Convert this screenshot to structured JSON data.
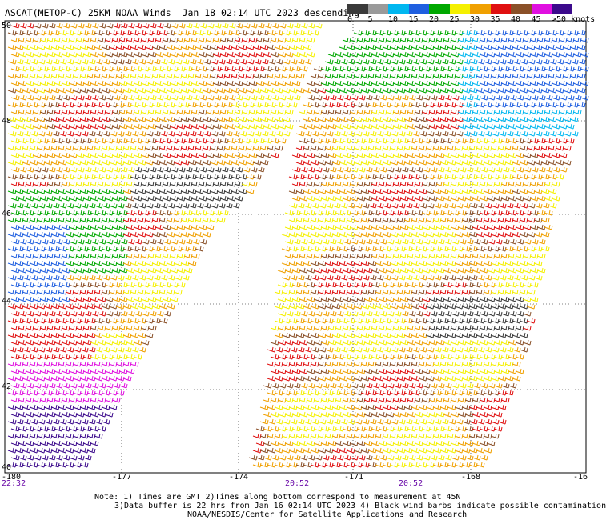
{
  "title": "ASCAT(METOP-C) 25KM NOAA Winds  Jan 18 02:14 UTC 2023 descending",
  "legend": {
    "labels": [
      "0",
      "5",
      "10",
      "15",
      "20",
      "25",
      "30",
      "35",
      "40",
      "45",
      ">50 knots"
    ],
    "colors": [
      "#3a3a3a",
      "#9a9a9a",
      "#00b7f0",
      "#1f5fe0",
      "#00a800",
      "#f5f000",
      "#f0a000",
      "#e01010",
      "#8a5028",
      "#e010e0",
      "#3c0a8c"
    ]
  },
  "axes": {
    "lon_labels": [
      "-180",
      "-177",
      "-174",
      "-171",
      "-168",
      "-16"
    ],
    "lat_labels": [
      "50",
      "48",
      "46",
      "44",
      "42",
      "40"
    ]
  },
  "time_labels": [
    "22:32",
    "20:52",
    "20:52"
  ],
  "notes": {
    "line1": "Note: 1) Times are GMT 2)Times along bottom correspond to measurement at 45N",
    "line2": "3)Data buffer is 22 hrs from Jan 16 02:14 UTC 2023 4) Black wind barbs indicate possible contamination",
    "line3": "NOAA/NESDIS/Center for Satellite Applications and Research"
  }
}
